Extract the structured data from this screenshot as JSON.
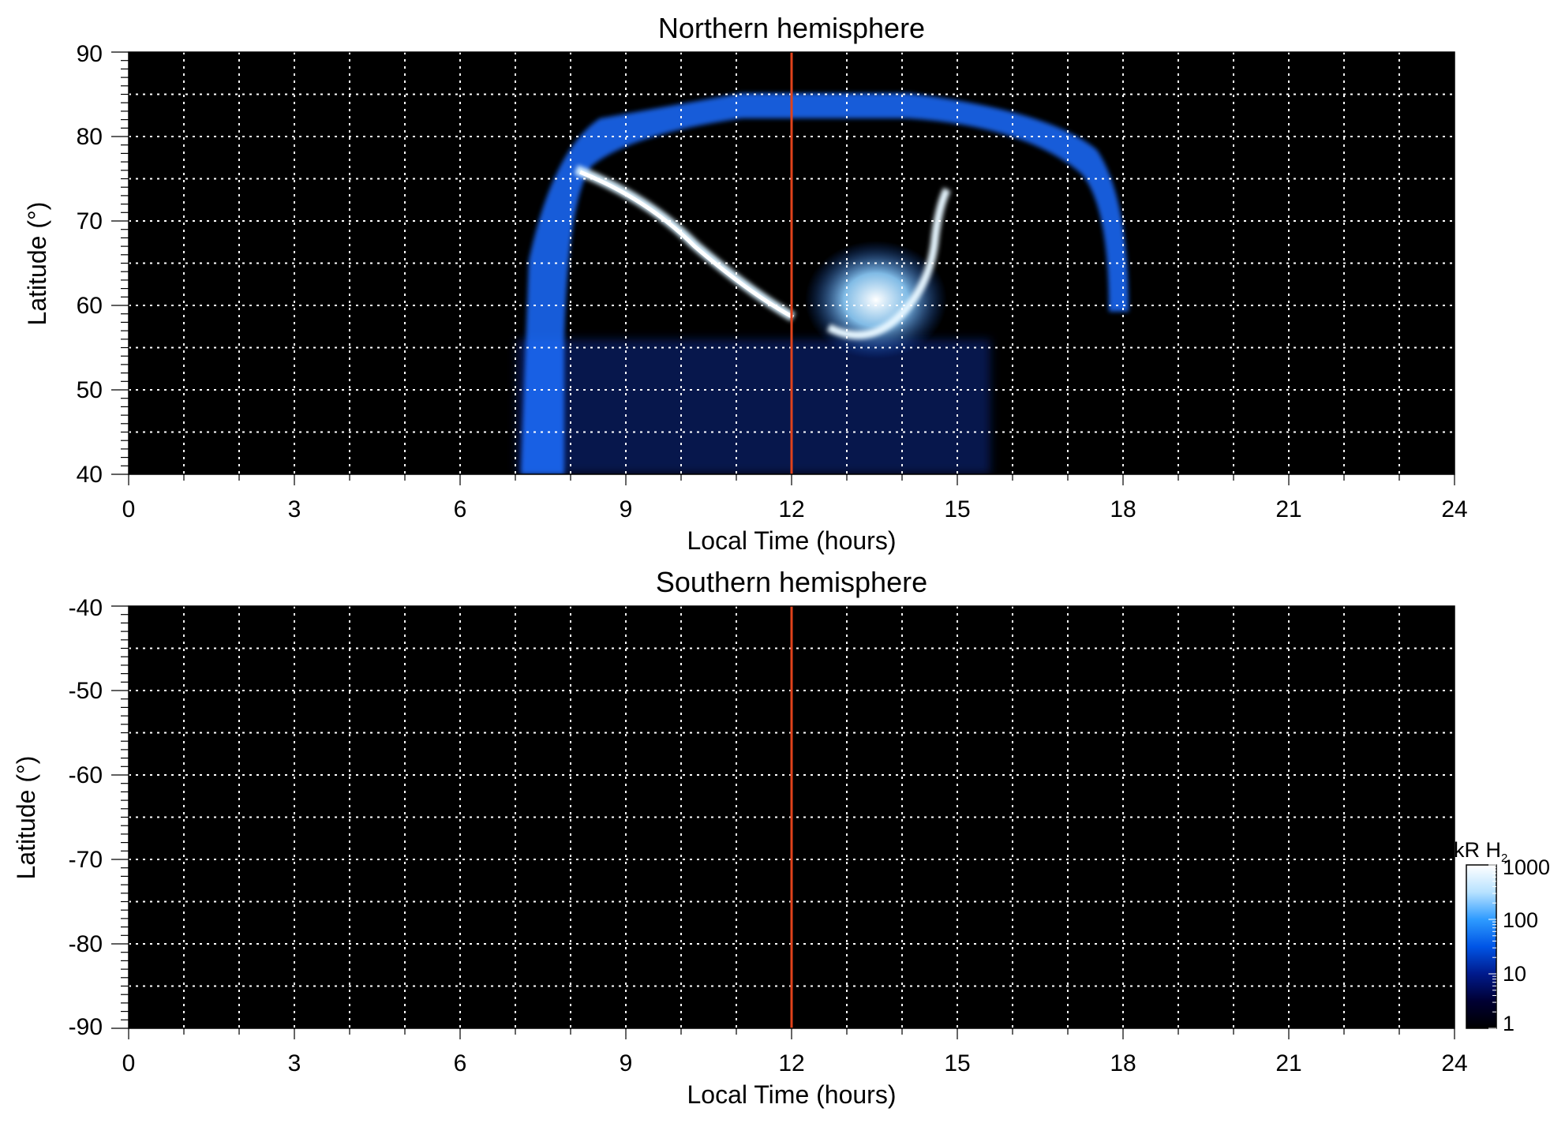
{
  "chart_data": [
    {
      "type": "heatmap",
      "title": "Northern hemisphere",
      "xlabel": "Local Time (hours)",
      "ylabel": "Latitude (°)",
      "xlim": [
        0,
        24
      ],
      "ylim": [
        40,
        90
      ],
      "xticks": [
        "0",
        "3",
        "6",
        "9",
        "12",
        "15",
        "18",
        "21",
        "24"
      ],
      "yticks": [
        "40",
        "50",
        "60",
        "70",
        "80",
        "90"
      ],
      "grid": true,
      "reference_line": {
        "x": 12,
        "color": "#e0421b"
      },
      "background": "#000000",
      "emission_regions": [
        {
          "feature": "main arc",
          "from": [
            8.6,
            75
          ],
          "to": [
            12.0,
            58
          ],
          "intensity_kR": 1000
        },
        {
          "feature": "afternoon spot",
          "from": [
            12.6,
            57
          ],
          "to": [
            14.6,
            72
          ],
          "intensity_kR": 1000
        },
        {
          "feature": "outer ring",
          "lt_range": [
            7.0,
            18.2
          ],
          "lat_range": [
            55,
            85
          ],
          "intensity_kR": 30
        },
        {
          "feature": "diffuse low-latitude",
          "lt_range": [
            7.0,
            16.0
          ],
          "lat_range": [
            40,
            55
          ],
          "intensity_kR": 5
        }
      ]
    },
    {
      "type": "heatmap",
      "title": "Southern hemisphere",
      "xlabel": "Local Time (hours)",
      "ylabel": "Latitude (°)",
      "xlim": [
        0,
        24
      ],
      "ylim": [
        -90,
        -40
      ],
      "xticks": [
        "0",
        "3",
        "6",
        "9",
        "12",
        "15",
        "18",
        "21",
        "24"
      ],
      "yticks": [
        "-40",
        "-50",
        "-60",
        "-70",
        "-80",
        "-90"
      ],
      "grid": true,
      "reference_line": {
        "x": 12,
        "color": "#e0421b"
      },
      "background": "#000000",
      "emission_regions": []
    }
  ],
  "colorbar": {
    "label": "kR H",
    "label_subscript": "2",
    "scale": "log",
    "range": [
      1,
      1000
    ],
    "ticks": [
      "1000",
      "100",
      "10",
      "1"
    ],
    "colors": [
      "#000000",
      "#000033",
      "#001a8c",
      "#0055e6",
      "#2e9bff",
      "#b8e2ff",
      "#ffffff"
    ]
  }
}
